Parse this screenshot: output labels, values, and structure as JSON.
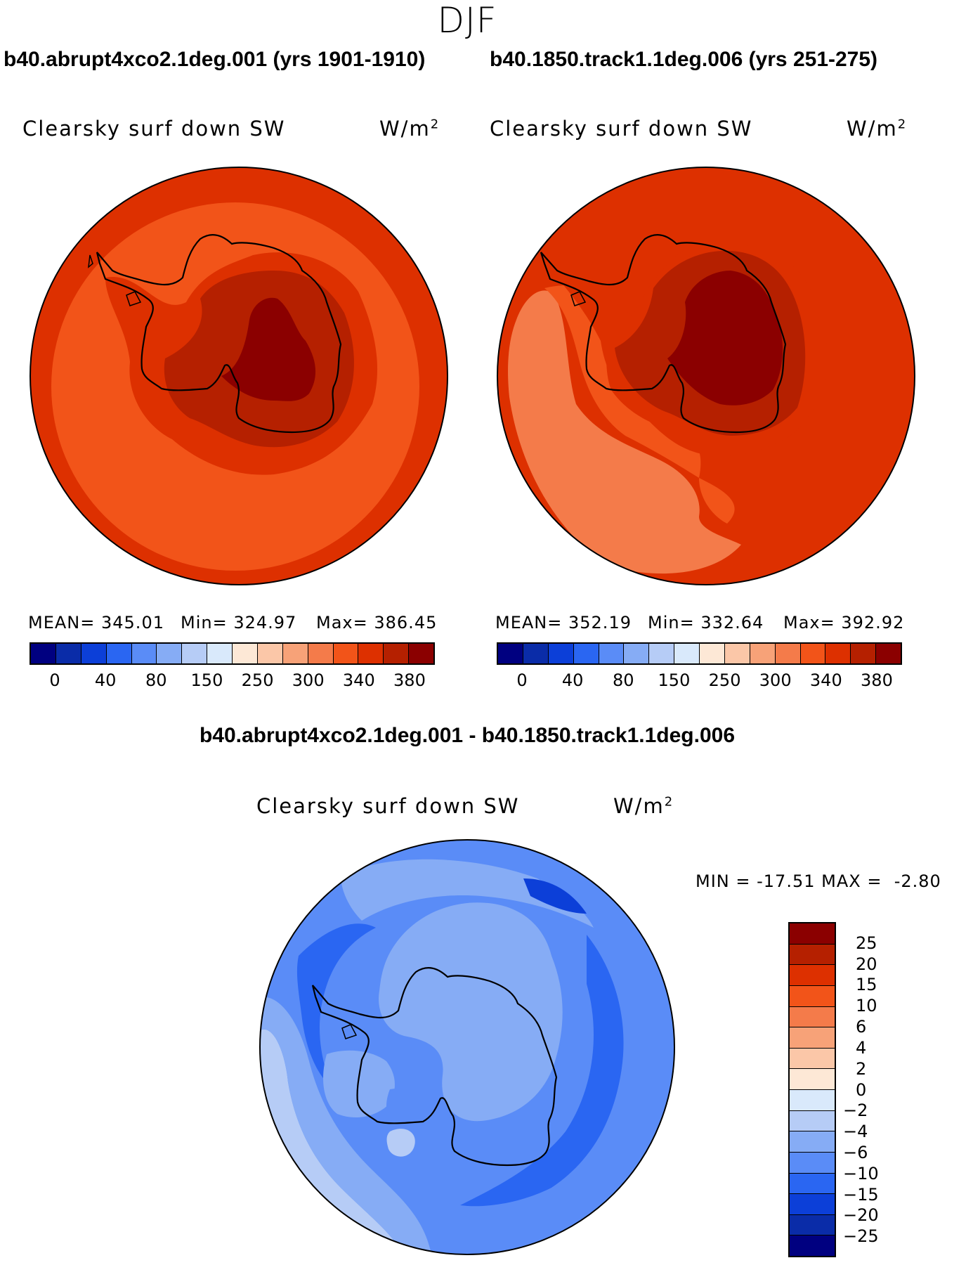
{
  "season": "DJF",
  "panels": [
    {
      "case_title": "b40.abrupt4xco2.1deg.001 (yrs 1901-1910)",
      "variable": "Clearsky surf down SW",
      "units_base": "W/m",
      "units_exp": "2",
      "mean_label": "MEAN=",
      "mean": "345.01",
      "min_label": "Min=",
      "min": "324.97",
      "max_label": "Max=",
      "max": "386.45"
    },
    {
      "case_title": "b40.1850.track1.1deg.006 (yrs 251-275)",
      "variable": "Clearsky surf down SW",
      "units_base": "W/m",
      "units_exp": "2",
      "mean_label": "MEAN=",
      "mean": "352.19",
      "min_label": "Min=",
      "min": "332.64",
      "max_label": "Max=",
      "max": "392.92"
    }
  ],
  "main_colorbar": {
    "colors": [
      "#000080",
      "#0a2ca8",
      "#0c3fd8",
      "#2a66f2",
      "#5a8cf7",
      "#86acf5",
      "#b6ccf6",
      "#d9e9fb",
      "#fde8d6",
      "#fbc7a8",
      "#f7a278",
      "#f47b4a",
      "#f25419",
      "#dd3000",
      "#b52000",
      "#8b0000"
    ],
    "ticks": [
      "0",
      "40",
      "80",
      "150",
      "250",
      "300",
      "340",
      "380"
    ]
  },
  "difference": {
    "title": "b40.abrupt4xco2.1deg.001 - b40.1850.track1.1deg.006",
    "variable": "Clearsky surf down SW",
    "units_base": "W/m",
    "units_exp": "2",
    "min_label": "MIN =",
    "min": "-17.51",
    "max_label": "MAX =",
    "max": "-2.80",
    "colors": [
      "#8b0000",
      "#b52000",
      "#dd3000",
      "#f25419",
      "#f47b4a",
      "#f7a278",
      "#fbc7a8",
      "#fde8d6",
      "#d9e9fb",
      "#b6ccf6",
      "#86acf5",
      "#5a8cf7",
      "#2a66f2",
      "#0c3fd8",
      "#0a2ca8",
      "#000080"
    ],
    "ticks": [
      "25",
      "20",
      "15",
      "10",
      "6",
      "4",
      "2",
      "0",
      "−2",
      "−4",
      "−6",
      "−10",
      "−15",
      "−20",
      "−25"
    ]
  }
}
